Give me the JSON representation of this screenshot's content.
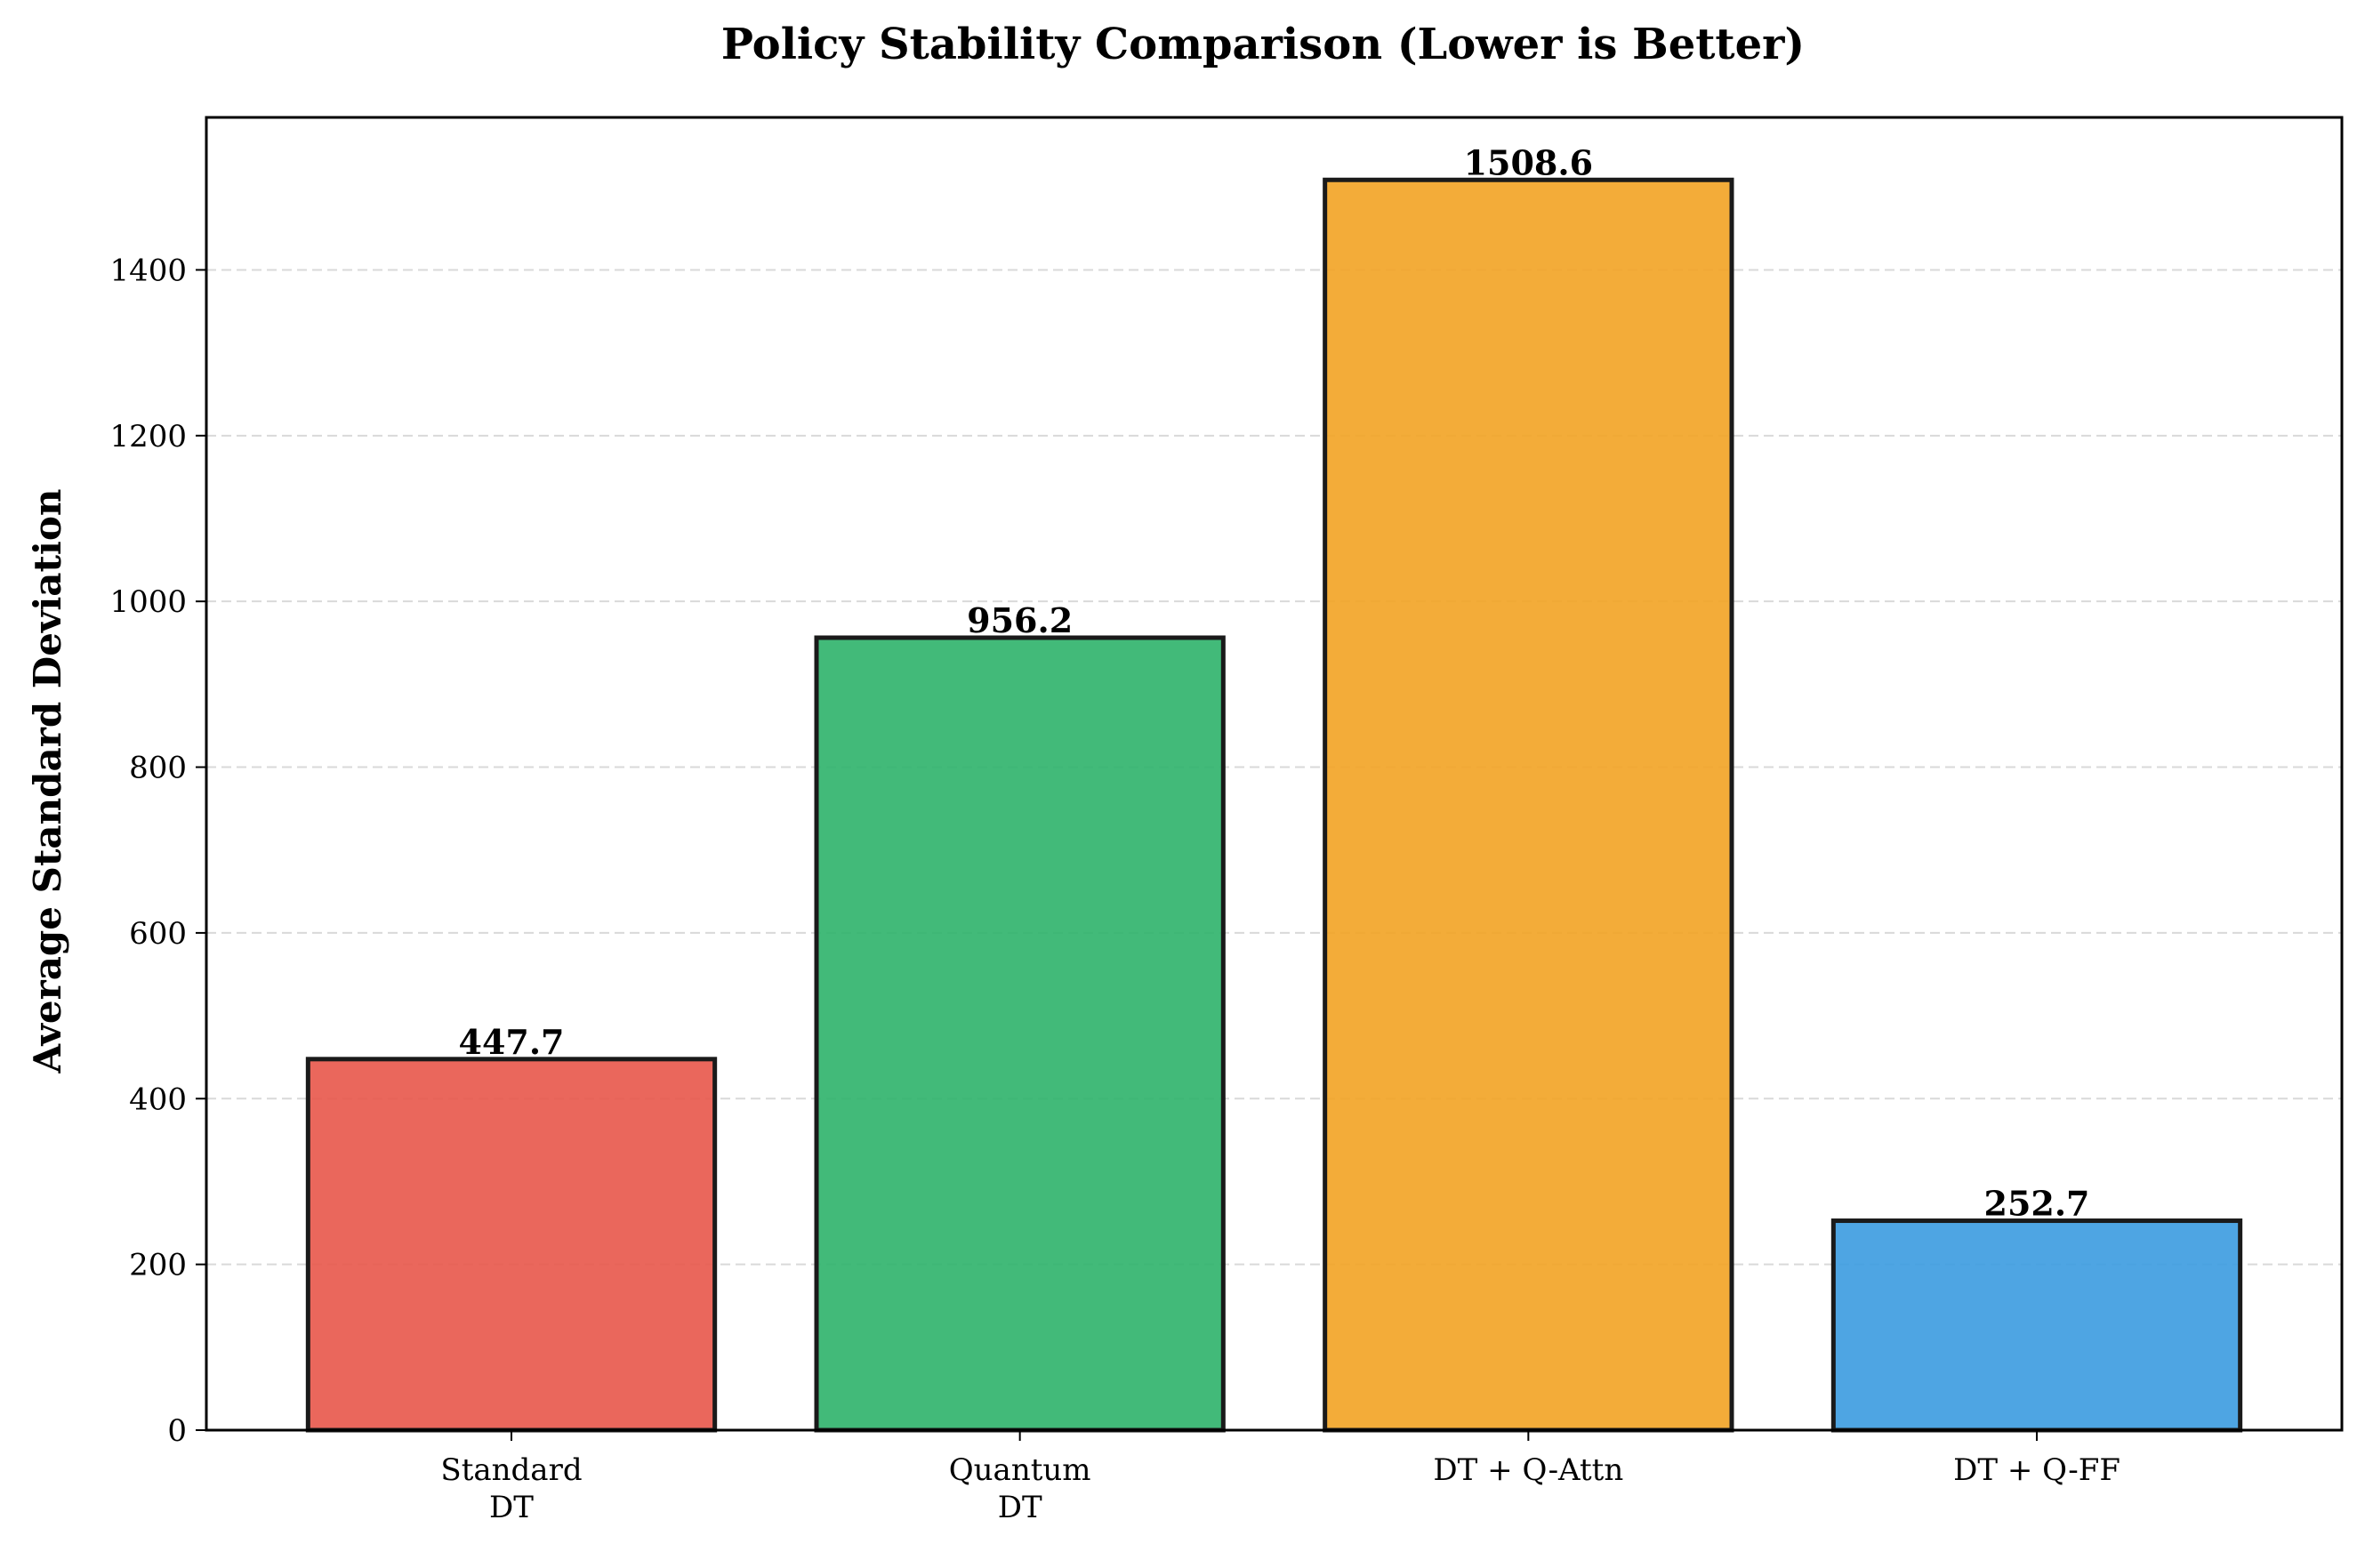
{
  "chart_data": {
    "type": "bar",
    "title": "Policy Stability Comparison (Lower is Better)",
    "xlabel": "",
    "ylabel": "Average Standard Deviation",
    "categories": [
      [
        "Standard",
        "DT"
      ],
      [
        "Quantum",
        "DT"
      ],
      [
        "DT + Q-Attn"
      ],
      [
        "DT + Q-FF"
      ]
    ],
    "values": [
      447.7,
      956.2,
      1508.6,
      252.7
    ],
    "value_labels": [
      "447.7",
      "956.2",
      "1508.6",
      "252.7"
    ],
    "colors": [
      "#e8564a",
      "#2db36a",
      "#f2a323",
      "#3b9be0"
    ],
    "ylim": [
      0,
      1584
    ],
    "yticks": [
      0,
      200,
      400,
      600,
      800,
      1000,
      1200,
      1400
    ],
    "grid": "horizontal dashed",
    "legend": "none"
  }
}
